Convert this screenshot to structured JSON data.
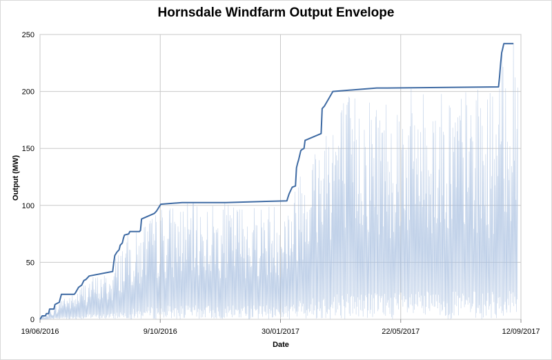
{
  "chart_data": {
    "type": "line",
    "title": "Hornsdale Windfarm Output Envelope",
    "xlabel": "Date",
    "ylabel": "Output (MW)",
    "x_tick_labels": [
      "19/06/2016",
      "9/10/2016",
      "30/01/2017",
      "22/05/2017",
      "12/09/2017"
    ],
    "x_range": [
      "2016-06-19",
      "2017-09-12"
    ],
    "y_tick_labels": [
      "0",
      "50",
      "100",
      "150",
      "200",
      "250"
    ],
    "ylim": [
      0,
      250
    ],
    "grid": true,
    "legend": "none",
    "colors": {
      "envelope": "#3e6aa3",
      "raw": "#a9c0e0",
      "grid": "#c8c8c8"
    },
    "series": [
      {
        "role": "envelope",
        "points": [
          [
            "2016-06-19",
            0
          ],
          [
            "2016-06-21",
            3
          ],
          [
            "2016-06-24",
            3
          ],
          [
            "2016-06-25",
            5
          ],
          [
            "2016-06-27",
            5
          ],
          [
            "2016-06-28",
            9
          ],
          [
            "2016-07-02",
            9
          ],
          [
            "2016-07-03",
            13
          ],
          [
            "2016-07-07",
            15
          ],
          [
            "2016-07-09",
            22
          ],
          [
            "2016-07-21",
            22
          ],
          [
            "2016-07-22",
            23
          ],
          [
            "2016-07-25",
            28
          ],
          [
            "2016-07-28",
            30
          ],
          [
            "2016-07-30",
            34
          ],
          [
            "2016-08-01",
            35
          ],
          [
            "2016-08-04",
            38
          ],
          [
            "2016-08-26",
            42
          ],
          [
            "2016-08-27",
            50
          ],
          [
            "2016-08-28",
            56
          ],
          [
            "2016-08-30",
            59
          ],
          [
            "2016-09-01",
            61
          ],
          [
            "2016-09-02",
            65
          ],
          [
            "2016-09-04",
            67
          ],
          [
            "2016-09-05",
            71
          ],
          [
            "2016-09-06",
            74
          ],
          [
            "2016-09-10",
            75
          ],
          [
            "2016-09-11",
            77
          ],
          [
            "2016-09-20",
            77
          ],
          [
            "2016-09-21",
            78
          ],
          [
            "2016-09-22",
            88
          ],
          [
            "2016-10-04",
            93
          ],
          [
            "2016-10-06",
            95
          ],
          [
            "2016-10-08",
            98
          ],
          [
            "2016-10-10",
            101
          ],
          [
            "2016-10-30",
            102.5
          ],
          [
            "2016-12-10",
            102.5
          ],
          [
            "2017-02-05",
            104
          ],
          [
            "2017-02-06",
            107
          ],
          [
            "2017-02-07",
            110
          ],
          [
            "2017-02-08",
            112
          ],
          [
            "2017-02-10",
            116
          ],
          [
            "2017-02-13",
            117
          ],
          [
            "2017-02-14",
            133
          ],
          [
            "2017-02-15",
            137
          ],
          [
            "2017-02-16",
            140
          ],
          [
            "2017-02-18",
            148
          ],
          [
            "2017-02-19",
            149
          ],
          [
            "2017-02-21",
            150
          ],
          [
            "2017-02-22",
            157
          ],
          [
            "2017-03-09",
            163
          ],
          [
            "2017-03-10",
            185
          ],
          [
            "2017-03-12",
            187
          ],
          [
            "2017-03-17",
            195
          ],
          [
            "2017-03-20",
            200
          ],
          [
            "2017-04-30",
            203
          ],
          [
            "2017-05-10",
            203
          ],
          [
            "2017-08-22",
            204
          ],
          [
            "2017-08-23",
            213
          ],
          [
            "2017-08-24",
            225
          ],
          [
            "2017-08-25",
            234
          ],
          [
            "2017-08-26",
            238
          ],
          [
            "2017-08-27",
            242
          ],
          [
            "2017-09-05",
            242
          ]
        ]
      }
    ]
  }
}
